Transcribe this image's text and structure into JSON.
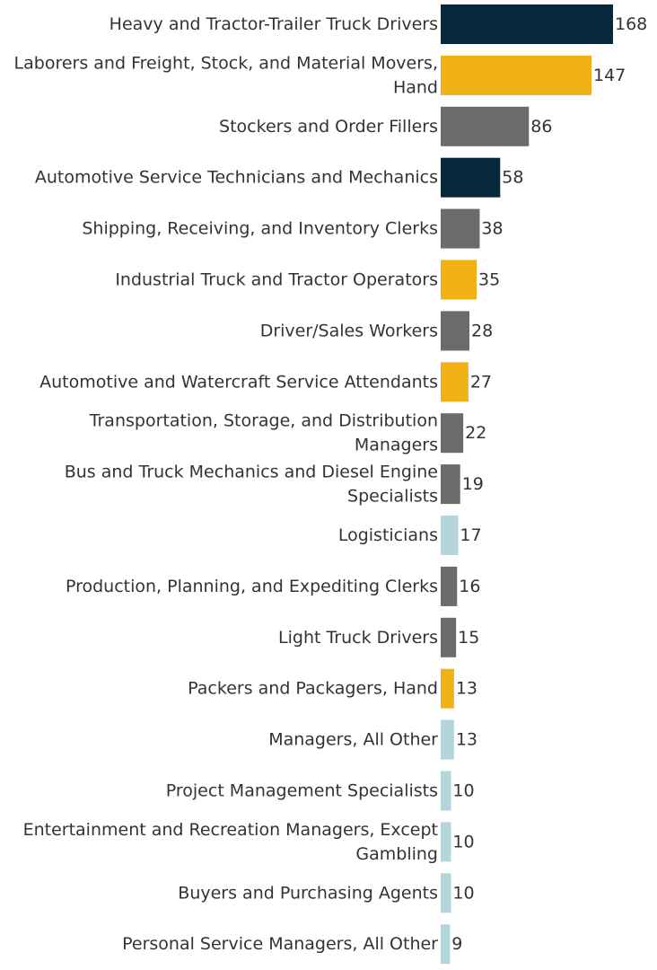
{
  "chart_data": {
    "type": "bar",
    "orientation": "horizontal",
    "title": "",
    "xlabel": "",
    "ylabel": "",
    "grid": false,
    "categories": [
      [
        "Heavy and Tractor-Trailer Truck Drivers"
      ],
      [
        "Laborers and Freight, Stock, and Material Movers,",
        "Hand"
      ],
      [
        "Stockers and Order Fillers"
      ],
      [
        "Automotive Service Technicians and Mechanics"
      ],
      [
        "Shipping, Receiving, and Inventory Clerks"
      ],
      [
        "Industrial Truck and Tractor Operators"
      ],
      [
        "Driver/Sales Workers"
      ],
      [
        "Automotive and Watercraft Service Attendants"
      ],
      [
        "Transportation, Storage, and Distribution",
        "Managers"
      ],
      [
        "Bus and Truck Mechanics and Diesel Engine",
        "Specialists"
      ],
      [
        "Logisticians"
      ],
      [
        "Production, Planning, and Expediting Clerks"
      ],
      [
        "Light Truck Drivers"
      ],
      [
        "Packers and Packagers, Hand"
      ],
      [
        "Managers, All Other"
      ],
      [
        "Project Management Specialists"
      ],
      [
        "Entertainment and Recreation Managers, Except",
        "Gambling"
      ],
      [
        "Buyers and Purchasing Agents"
      ],
      [
        "Personal Service Managers, All Other"
      ]
    ],
    "values": [
      168,
      147,
      86,
      58,
      38,
      35,
      28,
      27,
      22,
      19,
      17,
      16,
      15,
      13,
      13,
      10,
      10,
      10,
      9
    ],
    "value_labels": [
      "168",
      "147",
      "86",
      "58",
      "38",
      "35",
      "28",
      "27",
      "22",
      "19",
      "17",
      "16",
      "15",
      "13",
      "13",
      "10",
      "10",
      "10",
      "9"
    ],
    "bar_colors": [
      "#06283a",
      "#f0b114",
      "#6b6b6b",
      "#06283a",
      "#6b6b6b",
      "#f0b114",
      "#6b6b6b",
      "#f0b114",
      "#6b6b6b",
      "#6b6b6b",
      "#b3d6dc",
      "#6b6b6b",
      "#6b6b6b",
      "#f0b114",
      "#b3d6dc",
      "#b3d6dc",
      "#b3d6dc",
      "#b3d6dc",
      "#b3d6dc"
    ],
    "xlim": [
      0,
      168
    ]
  }
}
